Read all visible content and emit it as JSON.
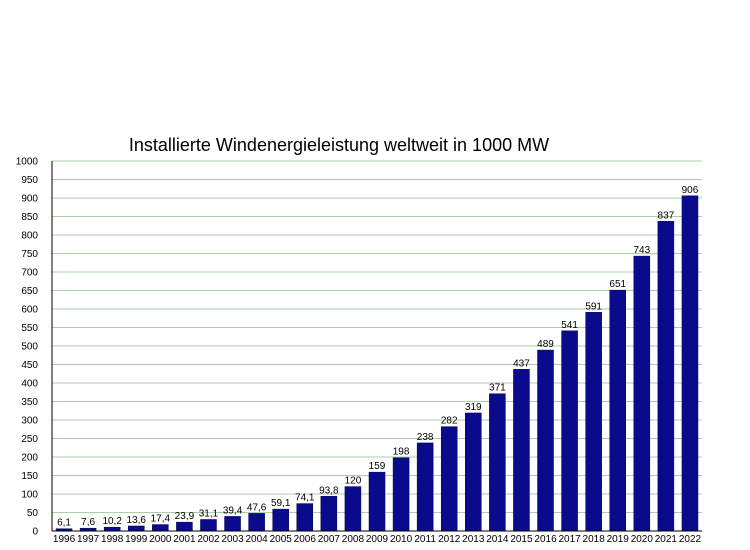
{
  "chart_data": {
    "type": "bar",
    "title": "Installierte Windenergieleistung weltweit in 1000 MW",
    "xlabel": "",
    "ylabel": "",
    "ylim": [
      0,
      1000
    ],
    "ytick_step": 50,
    "grid": true,
    "legend": "none",
    "categories": [
      "1996",
      "1997",
      "1998",
      "1999",
      "2000",
      "2001",
      "2002",
      "2003",
      "2004",
      "2005",
      "2006",
      "2007",
      "2008",
      "2009",
      "2010",
      "2011",
      "2012",
      "2013",
      "2014",
      "2015",
      "2016",
      "2017",
      "2018",
      "2019",
      "2020",
      "2021",
      "2022"
    ],
    "values": [
      6.1,
      7.6,
      10.2,
      13.6,
      17.4,
      23.9,
      31.1,
      39.4,
      47.6,
      59.1,
      74.1,
      93.8,
      120,
      159,
      198,
      238,
      282,
      319,
      371,
      437,
      489,
      541,
      591,
      651,
      743,
      837,
      906
    ],
    "data_labels": [
      "6,1",
      "7,6",
      "10,2",
      "13,6",
      "17,4",
      "23,9",
      "31,1",
      "39,4",
      "47,6",
      "59,1",
      "74,1",
      "93,8",
      "120",
      "159",
      "198",
      "238",
      "282",
      "319",
      "371",
      "437",
      "489",
      "541",
      "591",
      "651",
      "743",
      "837",
      "906"
    ],
    "colors": {
      "bar": "#0a0a8c",
      "bar_edge": "#000050",
      "grid": "#a8cfa8"
    }
  }
}
